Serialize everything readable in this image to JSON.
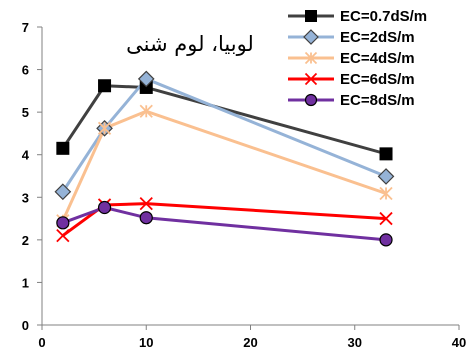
{
  "chart_data": {
    "type": "line",
    "title": "لوبیا، لوم شنی",
    "xlabel": "",
    "ylabel": "",
    "xlim": [
      0,
      40
    ],
    "ylim": [
      0,
      7
    ],
    "x_ticks": [
      0,
      10,
      20,
      30,
      40
    ],
    "y_ticks": [
      0,
      1,
      2,
      3,
      4,
      5,
      6,
      7
    ],
    "grid": false,
    "legend_position": "top-right",
    "series": [
      {
        "name": "EC=0.7dS/m",
        "color": "#404040",
        "marker": "square",
        "points": [
          [
            2,
            4.15
          ],
          [
            6,
            5.62
          ],
          [
            10,
            5.58
          ],
          [
            33,
            4.02
          ]
        ]
      },
      {
        "name": "EC=2dS/m",
        "color": "#95b3d7",
        "marker": "diamond",
        "points": [
          [
            2,
            3.13
          ],
          [
            6,
            4.62
          ],
          [
            10,
            5.78
          ],
          [
            33,
            3.49
          ]
        ]
      },
      {
        "name": "EC=4dS/m",
        "color": "#fac090",
        "marker": "asterisk",
        "points": [
          [
            2,
            2.45
          ],
          [
            6,
            4.62
          ],
          [
            10,
            5.02
          ],
          [
            33,
            3.09
          ]
        ]
      },
      {
        "name": "EC=6dS/m",
        "color": "#ff0000",
        "marker": "x",
        "points": [
          [
            2,
            2.1
          ],
          [
            6,
            2.82
          ],
          [
            10,
            2.85
          ],
          [
            33,
            2.5
          ]
        ]
      },
      {
        "name": "EC=8dS/m",
        "color": "#7030a0",
        "marker": "circle",
        "points": [
          [
            2,
            2.4
          ],
          [
            6,
            2.76
          ],
          [
            10,
            2.52
          ],
          [
            33,
            2.0
          ]
        ]
      }
    ]
  }
}
